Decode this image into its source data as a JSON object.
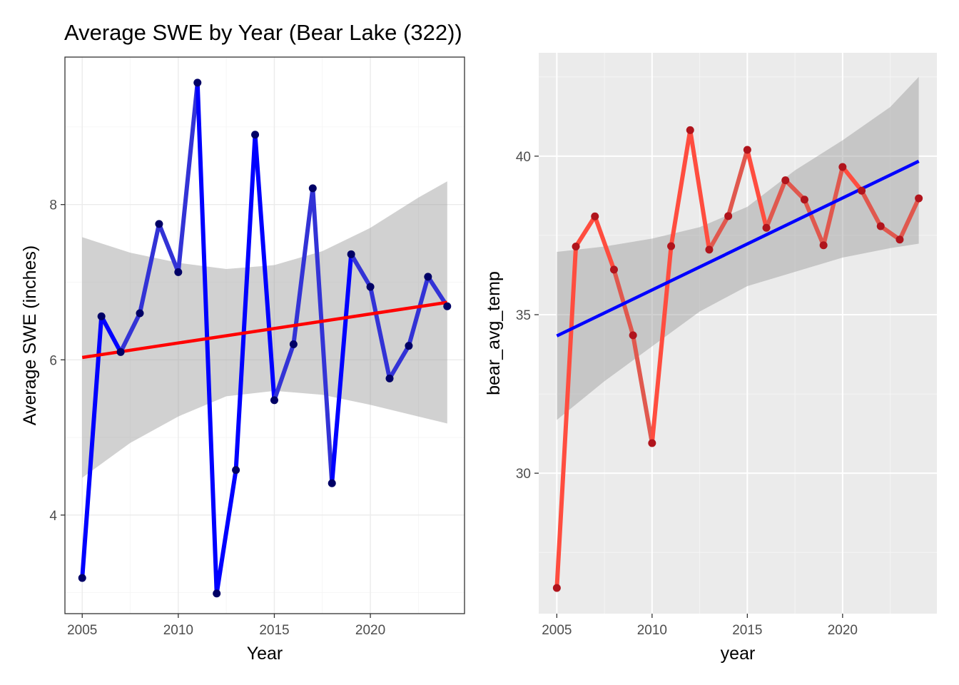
{
  "figure_title": "Average SWE by Year (Bear Lake (322))",
  "chart_data": [
    {
      "type": "line",
      "theme": "bw",
      "xlabel": "Year",
      "ylabel": "Average SWE (inches)",
      "xlim": [
        2004.1,
        2024.9
      ],
      "ylim": [
        2.73,
        9.9
      ],
      "x_ticks": [
        2005,
        2010,
        2015,
        2020
      ],
      "y_ticks": [
        4,
        6,
        8
      ],
      "grid": true,
      "series": [
        {
          "x": [
            2005,
            2006,
            2007,
            2008,
            2009,
            2010,
            2011,
            2012,
            2013,
            2014,
            2015,
            2016,
            2017,
            2018,
            2019,
            2020,
            2021,
            2022,
            2023,
            2024
          ],
          "values": [
            3.19,
            6.56,
            6.1,
            6.6,
            7.75,
            7.13,
            9.57,
            2.99,
            4.58,
            8.9,
            5.48,
            6.2,
            8.21,
            4.41,
            7.36,
            6.94,
            5.76,
            6.18,
            7.07,
            6.69
          ],
          "line_colors": [
            "#0000ff",
            "#0000ff",
            "#3333d6",
            "#3333d6",
            "#3333d6",
            "#3333d6",
            "#0000ff",
            "#0000ff",
            "#0000ff",
            "#0000ff",
            "#3333d6",
            "#3333d6",
            "#3333d6",
            "#0000ff",
            "#3333d6",
            "#3333d6",
            "#3333d6",
            "#3333d6",
            "#3333d6",
            "#3333d6"
          ],
          "point_color": "#000066"
        }
      ],
      "trend": {
        "method": "linear",
        "color": "#ff0000",
        "start": [
          2005,
          6.03
        ],
        "end": [
          2024,
          6.74
        ],
        "band": {
          "color": "#999999",
          "x": [
            2005,
            2007.5,
            2010,
            2012.5,
            2015,
            2017.5,
            2020,
            2022.5,
            2024
          ],
          "upper": [
            7.58,
            7.38,
            7.25,
            7.17,
            7.22,
            7.4,
            7.7,
            8.09,
            8.3
          ],
          "lower": [
            4.48,
            4.93,
            5.27,
            5.53,
            5.6,
            5.55,
            5.42,
            5.27,
            5.18
          ]
        }
      }
    },
    {
      "type": "line",
      "theme": "gray",
      "xlabel": "year",
      "ylabel": "bear_avg_temp",
      "xlim": [
        2004.05,
        2024.95
      ],
      "ylim": [
        25.57,
        43.26
      ],
      "x_ticks": [
        2005,
        2010,
        2015,
        2020
      ],
      "y_ticks": [
        30,
        35,
        40
      ],
      "grid": true,
      "series": [
        {
          "x": [
            2005,
            2006,
            2007,
            2008,
            2009,
            2010,
            2011,
            2012,
            2013,
            2014,
            2015,
            2016,
            2017,
            2018,
            2019,
            2020,
            2021,
            2022,
            2023,
            2024
          ],
          "values": [
            26.38,
            37.15,
            38.1,
            36.42,
            34.35,
            30.95,
            37.16,
            40.82,
            37.05,
            38.11,
            40.2,
            37.74,
            39.24,
            38.63,
            37.19,
            39.66,
            38.91,
            37.79,
            37.37,
            38.67
          ],
          "line_colors": [
            "#ff4d3f",
            "#ff4d3f",
            "#ff4d3f",
            "#e0584e",
            "#e0584e",
            "#ff4d3f",
            "#ff4d3f",
            "#ff4d3f",
            "#e0584e",
            "#e0584e",
            "#ff4d3f",
            "#e0584e",
            "#e0584e",
            "#e0584e",
            "#e0584e",
            "#ff4d3f",
            "#e0584e",
            "#e0584e",
            "#e0584e",
            "#e0584e"
          ],
          "point_color": "#b0141c"
        }
      ],
      "trend": {
        "method": "linear",
        "color": "#0000ff",
        "start": [
          2005,
          34.33
        ],
        "end": [
          2024,
          39.84
        ],
        "band": {
          "color": "#999999",
          "x": [
            2005,
            2007.5,
            2010,
            2012.5,
            2015,
            2017.5,
            2020,
            2022.5,
            2024
          ],
          "upper": [
            36.98,
            37.15,
            37.4,
            37.76,
            38.4,
            39.55,
            40.5,
            41.55,
            42.5
          ],
          "lower": [
            31.68,
            32.9,
            34.0,
            35.1,
            35.9,
            36.35,
            36.8,
            37.1,
            37.24
          ]
        }
      }
    }
  ]
}
